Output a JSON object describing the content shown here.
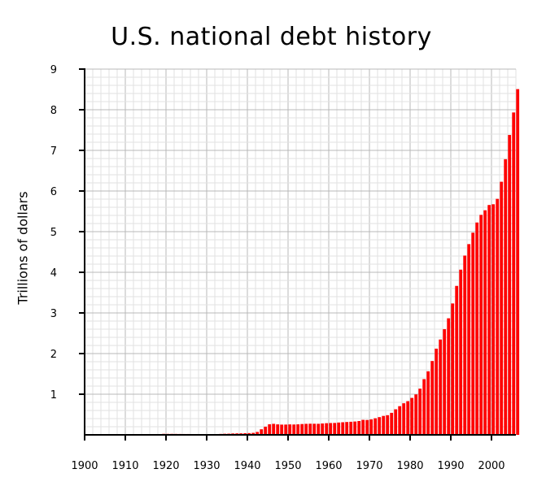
{
  "chart_data": {
    "type": "bar",
    "title": "U.S. national debt history",
    "xlabel": "",
    "ylabel": "Trillions of dollars",
    "xlim": [
      1900,
      2006
    ],
    "ylim": [
      0,
      9
    ],
    "x_ticks": [
      "1900",
      "1910",
      "1920",
      "1930",
      "1940",
      "1950",
      "1960",
      "1970",
      "1980",
      "1990",
      "2000"
    ],
    "y_ticks": [
      "1",
      "2",
      "3",
      "4",
      "5",
      "6",
      "7",
      "8",
      "9"
    ],
    "grid": true,
    "bar_color": "#ff0000",
    "years": [
      1900,
      1901,
      1902,
      1903,
      1904,
      1905,
      1906,
      1907,
      1908,
      1909,
      1910,
      1911,
      1912,
      1913,
      1914,
      1915,
      1916,
      1917,
      1918,
      1919,
      1920,
      1921,
      1922,
      1923,
      1924,
      1925,
      1926,
      1927,
      1928,
      1929,
      1930,
      1931,
      1932,
      1933,
      1934,
      1935,
      1936,
      1937,
      1938,
      1939,
      1940,
      1941,
      1942,
      1943,
      1944,
      1945,
      1946,
      1947,
      1948,
      1949,
      1950,
      1951,
      1952,
      1953,
      1954,
      1955,
      1956,
      1957,
      1958,
      1959,
      1960,
      1961,
      1962,
      1963,
      1964,
      1965,
      1966,
      1967,
      1968,
      1969,
      1970,
      1971,
      1972,
      1973,
      1974,
      1975,
      1976,
      1977,
      1978,
      1979,
      1980,
      1981,
      1982,
      1983,
      1984,
      1985,
      1986,
      1987,
      1988,
      1989,
      1990,
      1991,
      1992,
      1993,
      1994,
      1995,
      1996,
      1997,
      1998,
      1999,
      2000,
      2001,
      2002,
      2003,
      2004,
      2005
    ],
    "values": [
      0.001,
      0.001,
      0.001,
      0.001,
      0.001,
      0.001,
      0.001,
      0.001,
      0.001,
      0.001,
      0.001,
      0.001,
      0.001,
      0.001,
      0.001,
      0.001,
      0.001,
      0.003,
      0.012,
      0.025,
      0.024,
      0.024,
      0.023,
      0.022,
      0.021,
      0.021,
      0.02,
      0.018,
      0.018,
      0.017,
      0.016,
      0.017,
      0.019,
      0.023,
      0.027,
      0.029,
      0.034,
      0.036,
      0.037,
      0.04,
      0.043,
      0.049,
      0.072,
      0.137,
      0.201,
      0.26,
      0.271,
      0.258,
      0.252,
      0.253,
      0.257,
      0.255,
      0.259,
      0.266,
      0.271,
      0.274,
      0.273,
      0.272,
      0.28,
      0.287,
      0.291,
      0.293,
      0.303,
      0.31,
      0.316,
      0.322,
      0.328,
      0.34,
      0.369,
      0.366,
      0.381,
      0.408,
      0.436,
      0.466,
      0.484,
      0.542,
      0.629,
      0.706,
      0.777,
      0.829,
      0.909,
      0.995,
      1.137,
      1.371,
      1.564,
      1.817,
      2.121,
      2.346,
      2.601,
      2.868,
      3.233,
      3.665,
      4.065,
      4.411,
      4.693,
      4.974,
      5.225,
      5.413,
      5.526,
      5.656,
      5.674,
      5.807,
      6.228,
      6.783,
      7.379,
      7.933
    ]
  },
  "extra_bar": {
    "year": 2006,
    "value": 8.507
  }
}
